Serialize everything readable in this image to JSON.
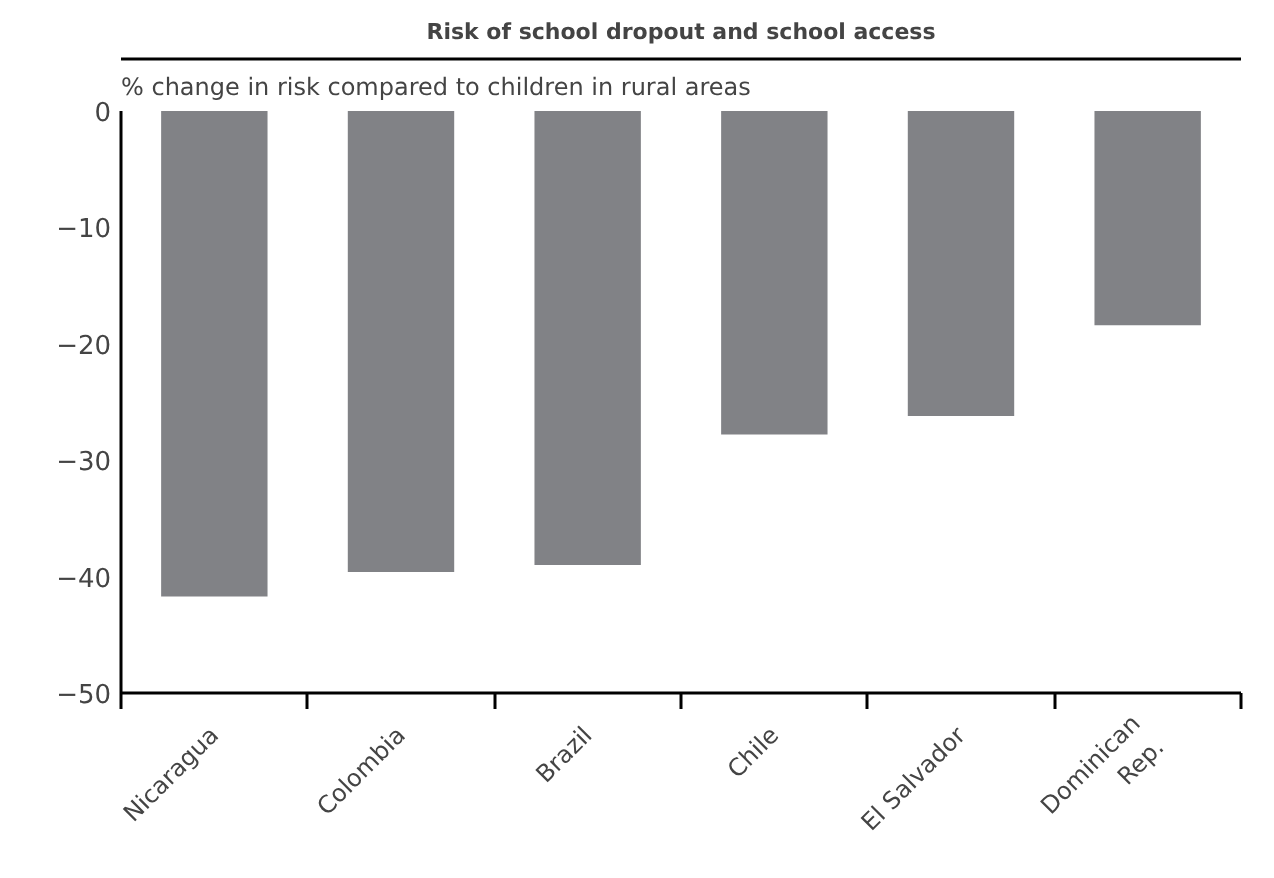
{
  "chart_data": {
    "type": "bar",
    "title": "Risk of school dropout and school access",
    "ylabel": "% change in risk compared to children in rural areas",
    "categories": [
      "Nicaragua",
      "Colombia",
      "Brazil",
      "Chile",
      "El Salvador",
      "Dominican\nRep."
    ],
    "values": [
      -41.7,
      -39.6,
      -39.0,
      -27.8,
      -26.2,
      -18.4
    ],
    "color": "#818286",
    "ylim": [
      -50,
      0
    ],
    "yticks": [
      {
        "value": -50,
        "label": "−50"
      },
      {
        "value": -40,
        "label": "−40"
      },
      {
        "value": -30,
        "label": "−30"
      },
      {
        "value": -20,
        "label": "−20"
      },
      {
        "value": -10,
        "label": "−10"
      },
      0
    ],
    "grid": false
  }
}
